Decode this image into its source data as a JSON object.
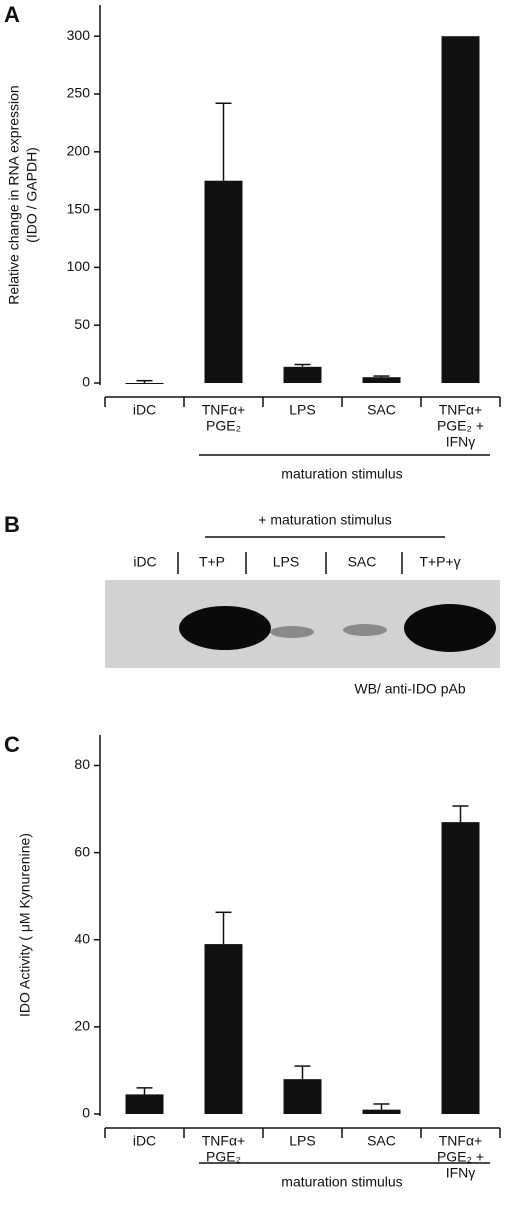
{
  "chart_data": [
    {
      "type": "bar",
      "panel_label": "A",
      "ylabel": [
        "Relative change in RNA expression",
        "(IDO / GAPDH)"
      ],
      "categories": [
        [
          "iDC"
        ],
        [
          "TNFα+",
          "PGE₂"
        ],
        [
          "LPS"
        ],
        [
          "SAC"
        ],
        [
          "TNFα+",
          "PGE₂ +",
          "IFNγ"
        ]
      ],
      "values": [
        0,
        175,
        14,
        5,
        300
      ],
      "errors": [
        2,
        67,
        2,
        1,
        0
      ],
      "color": "#111111",
      "ylim": [
        0,
        327
      ],
      "yticks": [
        0,
        50,
        100,
        150,
        200,
        250,
        300
      ],
      "annotation": "maturation stimulus"
    },
    {
      "type": "bar",
      "panel_label": "C",
      "ylabel": [
        "IDO Activity ( μM Kynurenine)"
      ],
      "categories": [
        [
          "iDC"
        ],
        [
          "TNFα+",
          "PGE₂"
        ],
        [
          "LPS"
        ],
        [
          "SAC"
        ],
        [
          "TNFα+",
          "PGE₂ +",
          "IFNγ"
        ]
      ],
      "values": [
        4.5,
        39,
        8,
        1,
        67
      ],
      "errors": [
        1.5,
        7.3,
        3,
        1.3,
        3.7
      ],
      "color": "#111111",
      "ylim": [
        0,
        87
      ],
      "yticks": [
        0,
        20,
        40,
        60,
        80
      ],
      "annotation": "maturation stimulus"
    }
  ],
  "blot": {
    "panel_label": "B",
    "header": "+ maturation stimulus",
    "lanes": [
      "iDC",
      "T+P",
      "LPS",
      "SAC",
      "T+P+γ"
    ],
    "caption": "WB/ anti-IDO pAb"
  }
}
